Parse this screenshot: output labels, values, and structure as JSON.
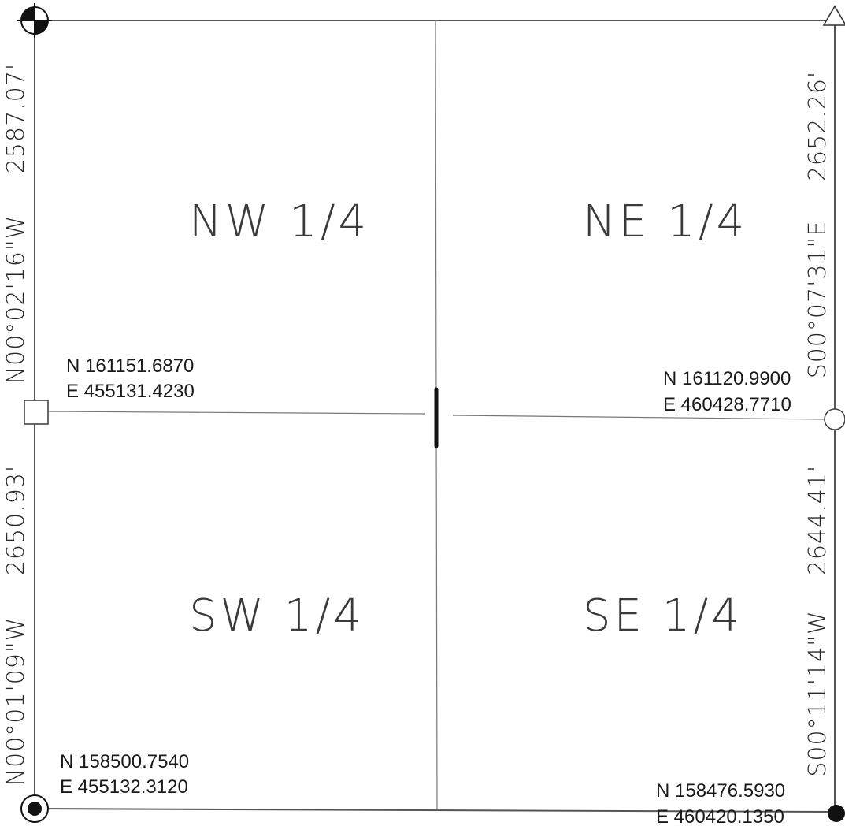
{
  "quarters": {
    "nw": "NW 1/4",
    "ne": "NE 1/4",
    "sw": "SW 1/4",
    "se": "SE 1/4"
  },
  "coordinates": {
    "nw_center_west": {
      "n": "N 161151.6870",
      "e": "E 455131.4230"
    },
    "center_east": {
      "n": "N 161120.9900",
      "e": "E 460428.7710"
    },
    "sw_corner": {
      "n": "N 158500.7540",
      "e": "E 455132.3120"
    },
    "se_corner": {
      "n": "N 158476.5930",
      "e": "E 460420.1350"
    }
  },
  "west_line": {
    "north_distance": "2587.07'",
    "north_bearing": "N00°02'16\"W",
    "south_distance": "2650.93'",
    "south_bearing": "N00°01'09\"W"
  },
  "east_line": {
    "north_distance": "2652.26'",
    "north_bearing": "S00°07'31\"E",
    "south_distance": "2644.41'",
    "south_bearing": "S00°11'14\"W"
  },
  "monument_icons": {
    "nw_corner": "quartered-circle-icon",
    "ne_corner": "triangle-icon",
    "west_quarter": "square-icon",
    "east_quarter": "open-circle-icon",
    "sw_corner": "bullseye-icon",
    "se_corner": "filled-circle-icon"
  },
  "colors": {
    "line": "#555555",
    "ink": "#1a1a1a"
  }
}
